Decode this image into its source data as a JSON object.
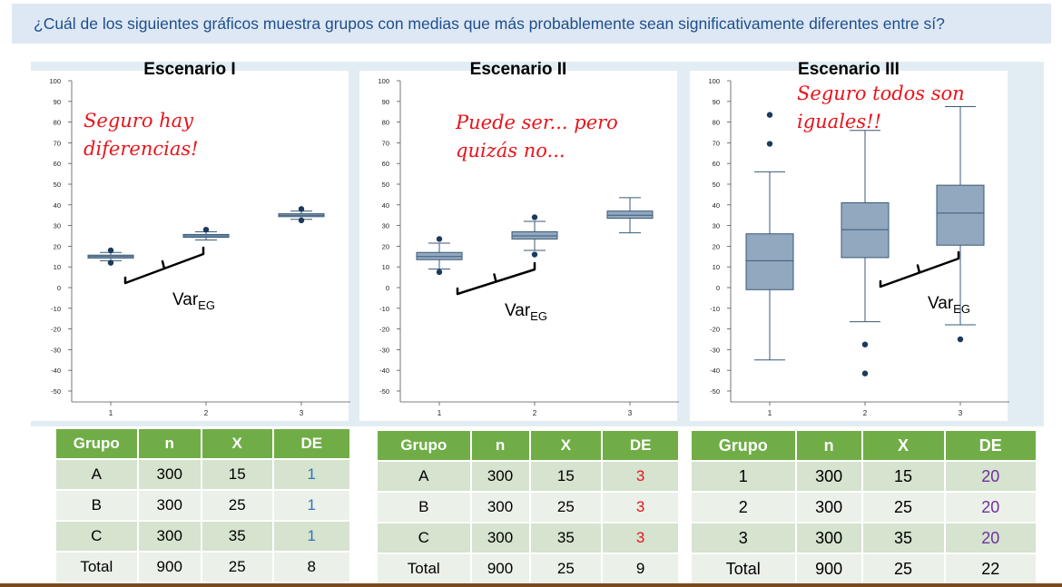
{
  "question": "¿Cuál de los siguientes gráficos muestra grupos con medias que más probablemente sean significativamente diferentes entre sí?",
  "var_label": "Var",
  "var_sub": "EG",
  "chart_data": [
    {
      "type": "box",
      "title": "Escenario I",
      "annotation": [
        "Seguro hay",
        "diferencias!"
      ],
      "ylim": [
        -50,
        100
      ],
      "yticks": [
        100,
        90,
        80,
        70,
        60,
        50,
        40,
        30,
        20,
        10,
        0,
        -10,
        -20,
        -30,
        -40,
        -50
      ],
      "categories": [
        "1",
        "2",
        "3"
      ],
      "boxes": [
        {
          "x": 1,
          "q1": 14.3,
          "median": 15,
          "q3": 15.7,
          "lw": 13,
          "uw": 17,
          "outliers": [
            18,
            12
          ]
        },
        {
          "x": 2,
          "q1": 24.3,
          "median": 25,
          "q3": 25.7,
          "lw": 23,
          "uw": 27,
          "outliers": [
            28
          ]
        },
        {
          "x": 3,
          "q1": 34.3,
          "median": 35,
          "q3": 35.7,
          "lw": 33,
          "uw": 37,
          "outliers": [
            38,
            32.5
          ]
        }
      ]
    },
    {
      "type": "box",
      "title": "Escenario II",
      "annotation": [
        "Puede ser... pero",
        "quizás no..."
      ],
      "ylim": [
        -50,
        100
      ],
      "yticks": [
        100,
        90,
        80,
        70,
        60,
        50,
        40,
        30,
        20,
        10,
        0,
        -10,
        -20,
        -30,
        -40,
        -50
      ],
      "categories": [
        "1",
        "2",
        "3"
      ],
      "boxes": [
        {
          "x": 1,
          "q1": 13.5,
          "median": 15,
          "q3": 17,
          "lw": 9,
          "uw": 21.5,
          "outliers": [
            23.5,
            7.5
          ]
        },
        {
          "x": 2,
          "q1": 23.5,
          "median": 25,
          "q3": 27,
          "lw": 18,
          "uw": 32,
          "outliers": [
            34,
            16
          ]
        },
        {
          "x": 3,
          "q1": 33.5,
          "median": 35,
          "q3": 37,
          "lw": 26.5,
          "uw": 43.5,
          "outliers": []
        }
      ]
    },
    {
      "type": "box",
      "title": "Escenario III",
      "annotation": [
        "Seguro todos son",
        "iguales!!"
      ],
      "ylim": [
        -50,
        100
      ],
      "yticks": [
        100,
        90,
        80,
        70,
        60,
        50,
        40,
        30,
        20,
        10,
        0,
        -10,
        -20,
        -30,
        -40,
        -50
      ],
      "categories": [
        "1",
        "2",
        "3"
      ],
      "boxes": [
        {
          "x": 1,
          "q1": -1,
          "median": 13,
          "q3": 26,
          "lw": -35,
          "uw": 56,
          "outliers": [
            83.5,
            69.5
          ]
        },
        {
          "x": 2,
          "q1": 14.5,
          "median": 28,
          "q3": 41,
          "lw": -16.5,
          "uw": 76,
          "outliers": [
            -27.5,
            -41.5
          ]
        },
        {
          "x": 3,
          "q1": 20.5,
          "median": 36,
          "q3": 49.5,
          "lw": -18,
          "uw": 87.5,
          "outliers": [
            -25
          ]
        }
      ]
    }
  ],
  "colors": {
    "box_fill": "#92a8bf",
    "box_stroke": "#3a5a78",
    "point": "#1b3a5c",
    "table_header": "#70ad47",
    "de1": "#2e75b6",
    "de3": "#e8141b",
    "de20": "#7030a0"
  },
  "tables": [
    {
      "headers": [
        "Grupo",
        "n",
        "X",
        "DE"
      ],
      "rows": [
        [
          "A",
          "300",
          "15",
          "1"
        ],
        [
          "B",
          "300",
          "25",
          "1"
        ],
        [
          "C",
          "300",
          "35",
          "1"
        ]
      ],
      "total": [
        "Total",
        "900",
        "25",
        "8"
      ]
    },
    {
      "headers": [
        "Grupo",
        "n",
        "X",
        "DE"
      ],
      "rows": [
        [
          "A",
          "300",
          "15",
          "3"
        ],
        [
          "B",
          "300",
          "25",
          "3"
        ],
        [
          "C",
          "300",
          "35",
          "3"
        ]
      ],
      "total": [
        "Total",
        "900",
        "25",
        "9"
      ]
    },
    {
      "headers": [
        "Grupo",
        "n",
        "X",
        "DE"
      ],
      "rows": [
        [
          "1",
          "300",
          "15",
          "20"
        ],
        [
          "2",
          "300",
          "25",
          "20"
        ],
        [
          "3",
          "300",
          "35",
          "20"
        ]
      ],
      "total": [
        "Total",
        "900",
        "25",
        "22"
      ]
    }
  ]
}
